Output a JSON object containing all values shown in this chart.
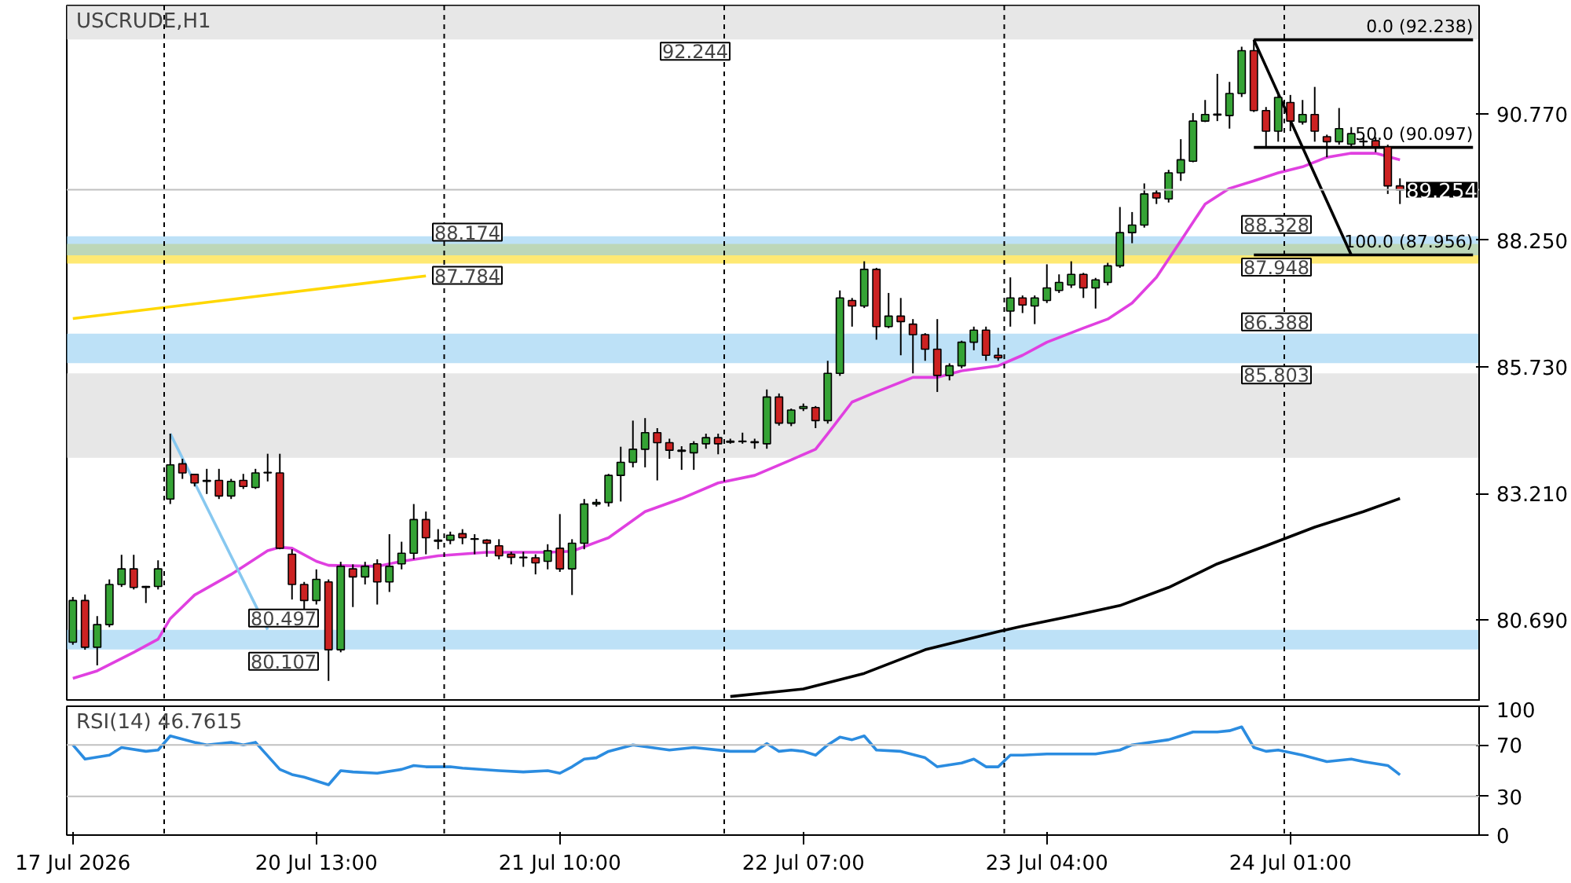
{
  "chart_data": [
    {
      "type": "candlestick",
      "title": "USCRUDE,H1",
      "categories": [
        null,
        null,
        null,
        null,
        null,
        null,
        null,
        null,
        null,
        null,
        null,
        null,
        null,
        null,
        null,
        null,
        null,
        null,
        null,
        null,
        null,
        null,
        null,
        null,
        null,
        null,
        null,
        null,
        null,
        null,
        null,
        null,
        null,
        null,
        null,
        null,
        null,
        null,
        null,
        null,
        null,
        null,
        null,
        null,
        null,
        null,
        null,
        null,
        null,
        null,
        null,
        null,
        null,
        null,
        null,
        null,
        null,
        null,
        null,
        null,
        null,
        null,
        null,
        null,
        null,
        null,
        null,
        null,
        null,
        null,
        null,
        null,
        null,
        null,
        null,
        null,
        null,
        null,
        null,
        null,
        null,
        null,
        null,
        null,
        null,
        null,
        null,
        null,
        null,
        null,
        null,
        null,
        null,
        null,
        null,
        null,
        null,
        null,
        null,
        null,
        null,
        null,
        null,
        null,
        null,
        null,
        null,
        null,
        null,
        null,
        null,
        null,
        null,
        null,
        null,
        null
      ],
      "ohlc": [
        [
          80.25,
          81.15,
          80.2,
          81.08
        ],
        [
          81.08,
          81.2,
          80.1,
          80.15
        ],
        [
          80.15,
          80.77,
          79.79,
          80.6
        ],
        [
          80.6,
          81.5,
          80.55,
          81.4
        ],
        [
          81.4,
          81.99,
          81.35,
          81.71
        ],
        [
          81.71,
          81.99,
          81.3,
          81.34
        ],
        [
          81.34,
          81.37,
          81.03,
          81.36
        ],
        [
          81.36,
          81.88,
          81.3,
          81.71
        ],
        [
          83.1,
          84.4,
          83.0,
          83.78
        ],
        [
          83.8,
          83.9,
          83.5,
          83.62
        ],
        [
          83.59,
          83.6,
          83.35,
          83.42
        ],
        [
          83.45,
          83.7,
          83.2,
          83.47
        ],
        [
          83.47,
          83.7,
          83.1,
          83.16
        ],
        [
          83.16,
          83.5,
          83.1,
          83.45
        ],
        [
          83.47,
          83.6,
          83.3,
          83.35
        ],
        [
          83.33,
          83.7,
          83.3,
          83.62
        ],
        [
          83.62,
          84.0,
          83.45,
          83.63
        ],
        [
          83.62,
          84.0,
          82.1,
          82.12
        ],
        [
          82.0,
          82.1,
          81.1,
          81.4
        ],
        [
          81.4,
          81.45,
          80.9,
          81.08
        ],
        [
          81.08,
          81.7,
          81.0,
          81.5
        ],
        [
          81.45,
          81.5,
          79.48,
          80.1
        ],
        [
          80.1,
          81.85,
          80.05,
          81.76
        ],
        [
          81.71,
          81.8,
          80.95,
          81.55
        ],
        [
          81.55,
          81.85,
          81.4,
          81.76
        ],
        [
          81.81,
          81.9,
          81.0,
          81.45
        ],
        [
          81.45,
          82.4,
          81.25,
          81.76
        ],
        [
          81.81,
          82.25,
          81.7,
          82.02
        ],
        [
          82.02,
          83.0,
          81.9,
          82.69
        ],
        [
          82.69,
          82.85,
          82.0,
          82.33
        ],
        [
          82.28,
          82.5,
          82.1,
          82.26
        ],
        [
          82.28,
          82.45,
          82.2,
          82.38
        ],
        [
          82.41,
          82.5,
          82.2,
          82.33
        ],
        [
          82.31,
          82.4,
          82.0,
          82.3
        ],
        [
          82.28,
          82.3,
          81.95,
          82.22
        ],
        [
          82.17,
          82.3,
          81.9,
          81.97
        ],
        [
          82.0,
          82.05,
          81.8,
          81.94
        ],
        [
          81.94,
          82.05,
          81.75,
          81.93
        ],
        [
          81.93,
          82.0,
          81.6,
          81.83
        ],
        [
          81.86,
          82.2,
          81.7,
          82.07
        ],
        [
          82.12,
          82.8,
          81.65,
          81.71
        ],
        [
          81.71,
          82.3,
          81.19,
          82.22
        ],
        [
          82.22,
          83.1,
          82.1,
          83.0
        ],
        [
          83.0,
          83.1,
          82.95,
          83.03
        ],
        [
          83.03,
          83.6,
          82.95,
          83.57
        ],
        [
          83.57,
          84.14,
          83.05,
          83.83
        ],
        [
          83.83,
          84.66,
          83.73,
          84.09
        ],
        [
          84.09,
          84.71,
          83.73,
          84.42
        ],
        [
          84.42,
          84.51,
          83.47,
          84.22
        ],
        [
          84.22,
          84.3,
          83.9,
          84.07
        ],
        [
          84.05,
          84.15,
          83.68,
          84.07
        ],
        [
          84.02,
          84.25,
          83.68,
          84.2
        ],
        [
          84.2,
          84.4,
          84.1,
          84.32
        ],
        [
          84.32,
          84.4,
          83.99,
          84.2
        ],
        [
          84.23,
          84.3,
          84.2,
          84.25
        ],
        [
          84.24,
          84.42,
          84.2,
          84.25
        ],
        [
          84.24,
          84.3,
          84.1,
          84.22
        ],
        [
          84.2,
          85.28,
          84.1,
          85.13
        ],
        [
          85.13,
          85.2,
          84.56,
          84.61
        ],
        [
          84.61,
          84.9,
          84.55,
          84.87
        ],
        [
          84.9,
          85.0,
          84.85,
          84.94
        ],
        [
          84.92,
          84.95,
          84.51,
          84.66
        ],
        [
          84.66,
          85.85,
          84.6,
          85.6
        ],
        [
          85.6,
          87.25,
          85.55,
          87.1
        ],
        [
          87.05,
          87.1,
          86.53,
          86.94
        ],
        [
          86.94,
          87.83,
          86.9,
          87.67
        ],
        [
          87.67,
          87.7,
          86.27,
          86.53
        ],
        [
          86.53,
          87.2,
          86.5,
          86.74
        ],
        [
          86.74,
          87.1,
          85.96,
          86.63
        ],
        [
          86.58,
          86.68,
          85.6,
          86.37
        ],
        [
          86.37,
          86.4,
          85.85,
          86.08
        ],
        [
          86.08,
          86.68,
          85.23,
          85.56
        ],
        [
          85.56,
          85.8,
          85.46,
          85.75
        ],
        [
          85.75,
          86.25,
          85.7,
          86.22
        ],
        [
          86.22,
          86.53,
          86.06,
          86.46
        ],
        [
          86.46,
          86.53,
          85.85,
          85.96
        ],
        [
          85.96,
          86.11,
          85.85,
          85.91
        ],
        [
          86.84,
          87.51,
          86.53,
          87.1
        ],
        [
          87.1,
          87.15,
          86.8,
          86.96
        ],
        [
          86.94,
          87.15,
          86.58,
          87.1
        ],
        [
          87.05,
          87.77,
          87.0,
          87.3
        ],
        [
          87.25,
          87.57,
          87.2,
          87.41
        ],
        [
          87.36,
          87.83,
          87.3,
          87.57
        ],
        [
          87.57,
          87.6,
          87.1,
          87.3
        ],
        [
          87.3,
          87.5,
          86.89,
          87.46
        ],
        [
          87.41,
          87.8,
          87.35,
          87.74
        ],
        [
          87.74,
          88.91,
          87.7,
          88.4
        ],
        [
          88.4,
          88.81,
          88.19,
          88.55
        ],
        [
          88.55,
          89.38,
          88.5,
          89.17
        ],
        [
          89.19,
          89.25,
          88.97,
          89.09
        ],
        [
          89.07,
          89.65,
          89.0,
          89.59
        ],
        [
          89.59,
          90.26,
          89.43,
          89.85
        ],
        [
          89.82,
          90.78,
          89.8,
          90.62
        ],
        [
          90.62,
          91.04,
          90.6,
          90.75
        ],
        [
          90.74,
          91.56,
          90.62,
          90.76
        ],
        [
          90.73,
          91.4,
          90.47,
          91.17
        ],
        [
          91.17,
          92.1,
          91.1,
          92.02
        ],
        [
          92.02,
          92.24,
          90.8,
          90.83
        ],
        [
          90.83,
          90.9,
          90.11,
          90.42
        ],
        [
          90.42,
          91.14,
          90.21,
          91.09
        ],
        [
          90.99,
          91.14,
          90.42,
          90.62
        ],
        [
          90.6,
          91.04,
          90.55,
          90.75
        ],
        [
          90.75,
          91.3,
          90.21,
          90.42
        ],
        [
          90.31,
          90.35,
          89.9,
          90.21
        ],
        [
          90.21,
          90.88,
          90.15,
          90.47
        ],
        [
          90.16,
          90.5,
          90.1,
          90.37
        ],
        [
          90.22,
          90.3,
          90.1,
          90.21
        ],
        [
          90.23,
          90.3,
          90.0,
          90.11
        ],
        [
          90.11,
          90.15,
          89.17,
          89.33
        ],
        [
          89.33,
          89.48,
          88.97,
          89.25
        ],
        null,
        null,
        null,
        null,
        null,
        null
      ],
      "colors": [
        "#35a335",
        "#cc2222",
        "#35a335",
        "#35a335",
        "#35a335",
        "#cc2222",
        "#35a335",
        "#35a335",
        "#35a335",
        "#cc2222",
        "#cc2222",
        "#35a335",
        "#cc2222",
        "#35a335",
        "#cc2222",
        "#35a335",
        "#35a335",
        "#cc2222",
        "#cc2222",
        "#cc2222",
        "#35a335",
        "#cc2222",
        "#35a335",
        "#cc2222",
        "#35a335",
        "#cc2222",
        "#35a335",
        "#35a335",
        "#35a335",
        "#cc2222",
        "#cc2222",
        "#35a335",
        "#cc2222",
        "#cc2222",
        "#cc2222",
        "#cc2222",
        "#cc2222",
        "#cc2222",
        "#cc2222",
        "#35a335",
        "#cc2222",
        "#35a335",
        "#35a335",
        "#35a335",
        "#35a335",
        "#35a335",
        "#35a335",
        "#35a335",
        "#cc2222",
        "#cc2222",
        "#35a335",
        "#35a335",
        "#35a335",
        "#cc2222",
        "#35a335",
        "#35a335",
        "#cc2222",
        "#35a335",
        "#cc2222",
        "#35a335",
        "#35a335",
        "#cc2222",
        "#35a335",
        "#35a335",
        "#cc2222",
        "#35a335",
        "#cc2222",
        "#35a335",
        "#cc2222",
        "#cc2222",
        "#cc2222",
        "#cc2222",
        "#35a335",
        "#35a335",
        "#35a335",
        "#cc2222",
        "#cc2222",
        "#35a335",
        "#cc2222",
        "#35a335",
        "#35a335",
        "#35a335",
        "#35a335",
        "#cc2222",
        "#35a335",
        "#35a335",
        "#35a335",
        "#35a335",
        "#35a335",
        "#cc2222",
        "#35a335",
        "#35a335",
        "#35a335",
        "#35a335",
        "#35a335",
        "#35a335",
        "#35a335",
        "#cc2222",
        "#cc2222",
        "#35a335",
        "#cc2222",
        "#35a335",
        "#cc2222",
        "#cc2222",
        "#35a335",
        "#35a335",
        "#cc2222",
        "#cc2222",
        "#cc2222",
        "#cc2222",
        null,
        null,
        null,
        null,
        null,
        null
      ],
      "series": [
        {
          "type": "line",
          "color": "#e040e0",
          "values": [
            79.53,
            null,
            79.68,
            null,
            null,
            80.05,
            null,
            80.31,
            80.72,
            null,
            81.19,
            null,
            null,
            81.6,
            null,
            null,
            82.07,
            82.14,
            82.12,
            null,
            81.86,
            81.78,
            null,
            null,
            null,
            81.76,
            null,
            81.86,
            null,
            null,
            81.97,
            null,
            null,
            null,
            82.04,
            null,
            null,
            null,
            null,
            82.04,
            null,
            82.06,
            null,
            null,
            82.33,
            null,
            null,
            82.85,
            null,
            null,
            83.11,
            null,
            null,
            83.42,
            null,
            null,
            83.57,
            null,
            null,
            83.88,
            null,
            84.09,
            84.4,
            null,
            85.03,
            null,
            85.23,
            null,
            null,
            85.52,
            null,
            85.52,
            null,
            85.65,
            null,
            null,
            85.75,
            null,
            85.96,
            null,
            86.22,
            null,
            null,
            86.5,
            null,
            86.68,
            null,
            87.0,
            null,
            87.51,
            null,
            88.24,
            null,
            88.97,
            null,
            89.28,
            null,
            89.43,
            null,
            89.59,
            null,
            89.71,
            null,
            89.9,
            null,
            89.98,
            null,
            89.98,
            null,
            89.85,
            null,
            null,
            null,
            null,
            null,
            null
          ]
        },
        {
          "type": "line",
          "color": "#000000",
          "values": [
            null,
            null,
            null,
            null,
            null,
            null,
            null,
            null,
            null,
            null,
            null,
            null,
            null,
            null,
            null,
            null,
            null,
            null,
            null,
            null,
            null,
            null,
            null,
            null,
            null,
            null,
            null,
            null,
            null,
            null,
            null,
            null,
            null,
            null,
            null,
            null,
            null,
            null,
            null,
            null,
            null,
            null,
            null,
            null,
            null,
            null,
            null,
            null,
            null,
            null,
            null,
            null,
            null,
            null,
            79.17,
            null,
            null,
            null,
            null,
            null,
            79.32,
            null,
            null,
            null,
            null,
            79.63,
            null,
            null,
            null,
            null,
            80.1,
            null,
            null,
            null,
            null,
            null,
            80.46,
            null,
            80.57,
            null,
            null,
            null,
            80.77,
            null,
            null,
            null,
            80.98,
            null,
            null,
            null,
            81.34,
            null,
            null,
            null,
            81.81,
            null,
            null,
            null,
            82.17,
            null,
            null,
            null,
            82.54,
            null,
            null,
            null,
            82.85,
            null,
            null,
            83.11,
            null,
            null,
            null,
            null,
            null,
            null
          ]
        },
        {
          "type": "line",
          "color": "#ffd700",
          "values": [
            86.69,
            null,
            null,
            null,
            null,
            null,
            null,
            null,
            null,
            null,
            null,
            null,
            null,
            null,
            null,
            null,
            null,
            null,
            null,
            null,
            null,
            null,
            null,
            null,
            null,
            null,
            null,
            null,
            null,
            87.54,
            null,
            null,
            null,
            null,
            null,
            null,
            null,
            null,
            null,
            null,
            null,
            null,
            null,
            null,
            null,
            null,
            null,
            null,
            null,
            null,
            null,
            null,
            null,
            null,
            null,
            null,
            null,
            null,
            null,
            null,
            null,
            null,
            null,
            null,
            null,
            null,
            null,
            null,
            null,
            null,
            null,
            null,
            null,
            null,
            null,
            null,
            null,
            null,
            null,
            null,
            null,
            null,
            null,
            null,
            null,
            null,
            null,
            null,
            null,
            null,
            null,
            null,
            null,
            null,
            null,
            null,
            null,
            null,
            null,
            null,
            null,
            null,
            null,
            null,
            null,
            null,
            null,
            null,
            null,
            null,
            null,
            null,
            null,
            null,
            null,
            null
          ]
        },
        {
          "type": "line",
          "color": "#87c8f0",
          "values": [
            null,
            null,
            null,
            null,
            null,
            null,
            null,
            null,
            84.4,
            null,
            null,
            null,
            null,
            null,
            null,
            null,
            80.5,
            null,
            null,
            null,
            null,
            null,
            null,
            null,
            null,
            null,
            null,
            null,
            null,
            null,
            null,
            null,
            null,
            null,
            null,
            null,
            null,
            null,
            null,
            null,
            null,
            null,
            null,
            null,
            null,
            null,
            null,
            null,
            null,
            null,
            null,
            null,
            null,
            null,
            null,
            null,
            null,
            null,
            null,
            null,
            null,
            null,
            null,
            null,
            null,
            null,
            null,
            null,
            null,
            null,
            null,
            null,
            null,
            null,
            null,
            null,
            null,
            null,
            null,
            null,
            null,
            null,
            null,
            null,
            null,
            null,
            null,
            null,
            null,
            null,
            null,
            null,
            null,
            null,
            null,
            null,
            null,
            null,
            null,
            null,
            null,
            null,
            null,
            null,
            null,
            null,
            null,
            null,
            null,
            null,
            null,
            null,
            null,
            null,
            null,
            null
          ]
        },
        {
          "type": "line",
          "color": "#000000",
          "values": [
            null,
            null,
            null,
            null,
            null,
            null,
            null,
            null,
            null,
            null,
            null,
            null,
            null,
            null,
            null,
            null,
            null,
            null,
            null,
            null,
            null,
            null,
            null,
            null,
            null,
            null,
            null,
            null,
            null,
            null,
            null,
            null,
            null,
            null,
            null,
            null,
            null,
            null,
            null,
            null,
            null,
            null,
            null,
            null,
            null,
            null,
            null,
            null,
            null,
            null,
            null,
            null,
            null,
            null,
            null,
            null,
            null,
            null,
            null,
            null,
            null,
            null,
            null,
            null,
            null,
            null,
            null,
            null,
            null,
            null,
            null,
            null,
            null,
            null,
            null,
            null,
            null,
            null,
            null,
            null,
            null,
            null,
            null,
            null,
            null,
            null,
            null,
            null,
            null,
            null,
            null,
            null,
            null,
            null,
            null,
            null,
            null,
            92.238,
            null,
            null,
            null,
            null,
            null,
            null,
            null,
            87.956,
            null,
            null,
            null,
            null,
            null,
            null,
            null,
            null,
            null,
            null
          ]
        },
        {
          "type": "line",
          "name": "0.0 (92.238)",
          "color": "#000000",
          "values": [
            null,
            null,
            null,
            null,
            null,
            null,
            null,
            null,
            null,
            null,
            null,
            null,
            null,
            null,
            null,
            null,
            null,
            null,
            null,
            null,
            null,
            null,
            null,
            null,
            null,
            null,
            null,
            null,
            null,
            null,
            null,
            null,
            null,
            null,
            null,
            null,
            null,
            null,
            null,
            null,
            null,
            null,
            null,
            null,
            null,
            null,
            null,
            null,
            null,
            null,
            null,
            null,
            null,
            null,
            null,
            null,
            null,
            null,
            null,
            null,
            null,
            null,
            null,
            null,
            null,
            null,
            null,
            null,
            null,
            null,
            null,
            null,
            null,
            null,
            null,
            null,
            null,
            null,
            null,
            null,
            null,
            null,
            null,
            null,
            null,
            null,
            null,
            null,
            null,
            null,
            null,
            null,
            null,
            null,
            null,
            null,
            null,
            92.238,
            92.238,
            92.238,
            92.238,
            92.238,
            92.238,
            92.238,
            92.238,
            92.238,
            92.238,
            92.238,
            92.238,
            92.238,
            92.238,
            92.238,
            92.238,
            92.238,
            92.238,
            92.238
          ]
        },
        {
          "type": "line",
          "name": "50.0 (90.097)",
          "color": "#000000",
          "values": [
            null,
            null,
            null,
            null,
            null,
            null,
            null,
            null,
            null,
            null,
            null,
            null,
            null,
            null,
            null,
            null,
            null,
            null,
            null,
            null,
            null,
            null,
            null,
            null,
            null,
            null,
            null,
            null,
            null,
            null,
            null,
            null,
            null,
            null,
            null,
            null,
            null,
            null,
            null,
            null,
            null,
            null,
            null,
            null,
            null,
            null,
            null,
            null,
            null,
            null,
            null,
            null,
            null,
            null,
            null,
            null,
            null,
            null,
            null,
            null,
            null,
            null,
            null,
            null,
            null,
            null,
            null,
            null,
            null,
            null,
            null,
            null,
            null,
            null,
            null,
            null,
            null,
            null,
            null,
            null,
            null,
            null,
            null,
            null,
            null,
            null,
            null,
            null,
            null,
            null,
            null,
            null,
            null,
            null,
            null,
            null,
            null,
            90.097,
            90.097,
            90.097,
            90.097,
            90.097,
            90.097,
            90.097,
            90.097,
            90.097,
            90.097,
            90.097,
            90.097,
            90.097,
            90.097,
            90.097,
            90.097,
            90.097,
            90.097,
            90.097
          ]
        },
        {
          "type": "line",
          "name": "100.0 (87.956)",
          "color": "#000000",
          "values": [
            null,
            null,
            null,
            null,
            null,
            null,
            null,
            null,
            null,
            null,
            null,
            null,
            null,
            null,
            null,
            null,
            null,
            null,
            null,
            null,
            null,
            null,
            null,
            null,
            null,
            null,
            null,
            null,
            null,
            null,
            null,
            null,
            null,
            null,
            null,
            null,
            null,
            null,
            null,
            null,
            null,
            null,
            null,
            null,
            null,
            null,
            null,
            null,
            null,
            null,
            null,
            null,
            null,
            null,
            null,
            null,
            null,
            null,
            null,
            null,
            null,
            null,
            null,
            null,
            null,
            null,
            null,
            null,
            null,
            null,
            null,
            null,
            null,
            null,
            null,
            null,
            null,
            null,
            null,
            null,
            null,
            null,
            null,
            null,
            null,
            null,
            null,
            null,
            null,
            null,
            null,
            null,
            null,
            null,
            null,
            null,
            null,
            87.956,
            87.956,
            87.956,
            87.956,
            87.956,
            87.956,
            87.956,
            87.956,
            87.956,
            87.956,
            87.956,
            87.956,
            87.956,
            87.956,
            87.956,
            87.956,
            87.956,
            87.956,
            87.956
          ]
        }
      ],
      "ylim": [
        79.07,
        92.92
      ],
      "yticks": [
        {
          "value": 80.69,
          "label": "80.690"
        },
        {
          "value": 83.21,
          "label": "83.210"
        },
        {
          "value": 85.73,
          "label": "85.730"
        },
        {
          "value": 88.25,
          "label": "88.250"
        },
        {
          "value": 90.77,
          "label": "90.770"
        }
      ],
      "tick_labels": "y",
      "grid": false,
      "bands": [
        {
          "axis": "y",
          "from": 92.244,
          "to": 92.92,
          "color": "#d3d3d3"
        },
        {
          "axis": "y",
          "from": 83.92,
          "to": 85.6,
          "color": "#d3d3d3"
        },
        {
          "axis": "y",
          "from": 87.784,
          "to": 88.174,
          "color": "#ffd700"
        },
        {
          "axis": "y",
          "from": 80.107,
          "to": 80.497,
          "color": "#87c8f0"
        },
        {
          "axis": "y",
          "from": 85.803,
          "to": 86.388,
          "color": "#87c8f0"
        },
        {
          "axis": "y",
          "from": 87.948,
          "to": 88.328,
          "color": "#87c8f0"
        }
      ],
      "ref_lines": [
        {
          "axis": "y",
          "value": 89.254,
          "label": "89.254",
          "color": "#c0c0c0",
          "line_style": "solid"
        }
      ],
      "annotations": [
        {
          "text": "92.244",
          "y": 92.244
        },
        {
          "text": "88.174",
          "y": 88.174
        },
        {
          "text": "87.784",
          "y": 87.784
        },
        {
          "text": "88.328",
          "y": 88.328
        },
        {
          "text": "87.948",
          "y": 87.948
        },
        {
          "text": "86.388",
          "y": 86.388
        },
        {
          "text": "85.803",
          "y": 85.803
        },
        {
          "text": "80.497",
          "y": 80.497
        },
        {
          "text": "80.107",
          "y": 80.107
        }
      ]
    },
    {
      "type": "line",
      "title": "RSI(14) 46.7615",
      "categories": [
        "17 Jul 2026",
        null,
        null,
        null,
        null,
        null,
        null,
        null,
        null,
        null,
        null,
        null,
        null,
        null,
        null,
        null,
        null,
        null,
        null,
        null,
        "20 Jul 13:00",
        null,
        null,
        null,
        null,
        null,
        null,
        null,
        null,
        null,
        null,
        null,
        null,
        null,
        null,
        null,
        null,
        null,
        null,
        null,
        "21 Jul 10:00",
        null,
        null,
        null,
        null,
        null,
        null,
        null,
        null,
        null,
        null,
        null,
        null,
        null,
        null,
        null,
        null,
        null,
        null,
        null,
        "22 Jul 07:00",
        null,
        null,
        null,
        null,
        null,
        null,
        null,
        null,
        null,
        null,
        null,
        null,
        null,
        null,
        null,
        null,
        null,
        null,
        null,
        "23 Jul 04:00",
        null,
        null,
        null,
        null,
        null,
        null,
        null,
        null,
        null,
        null,
        null,
        null,
        null,
        null,
        null,
        null,
        null,
        null,
        null,
        "24 Jul 01:00",
        null,
        null,
        null,
        null,
        null,
        null,
        null,
        null,
        null,
        null,
        null,
        null,
        null,
        null,
        null
      ],
      "series": [
        {
          "color": "#2b8ce0",
          "values": [
            70,
            59,
            null,
            62,
            68,
            null,
            65,
            66,
            77,
            null,
            72,
            70,
            null,
            72,
            70,
            72,
            null,
            51,
            47,
            45,
            null,
            39,
            50,
            49,
            null,
            48,
            null,
            51,
            54,
            53,
            null,
            53,
            52,
            null,
            null,
            50,
            null,
            49,
            null,
            50,
            48,
            53,
            59,
            60,
            65,
            null,
            70,
            null,
            null,
            66,
            null,
            68,
            null,
            null,
            65,
            null,
            65,
            71,
            65,
            66,
            65,
            62,
            70,
            76,
            74,
            77,
            66,
            null,
            65,
            null,
            60,
            53,
            null,
            56,
            59,
            53,
            53,
            62,
            62,
            null,
            63,
            null,
            63,
            null,
            63,
            null,
            66,
            70,
            null,
            null,
            74,
            77,
            80,
            null,
            80,
            81,
            84,
            68,
            65,
            66,
            null,
            62,
            null,
            57,
            null,
            59,
            57,
            null,
            54,
            46.76,
            null,
            null,
            null,
            null,
            null,
            null
          ]
        }
      ],
      "ylim": [
        0,
        100
      ],
      "yticks": [
        0,
        30,
        70,
        100
      ],
      "grid": false,
      "ref_lines": [
        {
          "axis": "y",
          "value": 30,
          "color": "#c0c0c0",
          "line_style": "solid"
        },
        {
          "axis": "y",
          "value": 70,
          "color": "#c0c0c0",
          "line_style": "solid"
        }
      ]
    }
  ]
}
